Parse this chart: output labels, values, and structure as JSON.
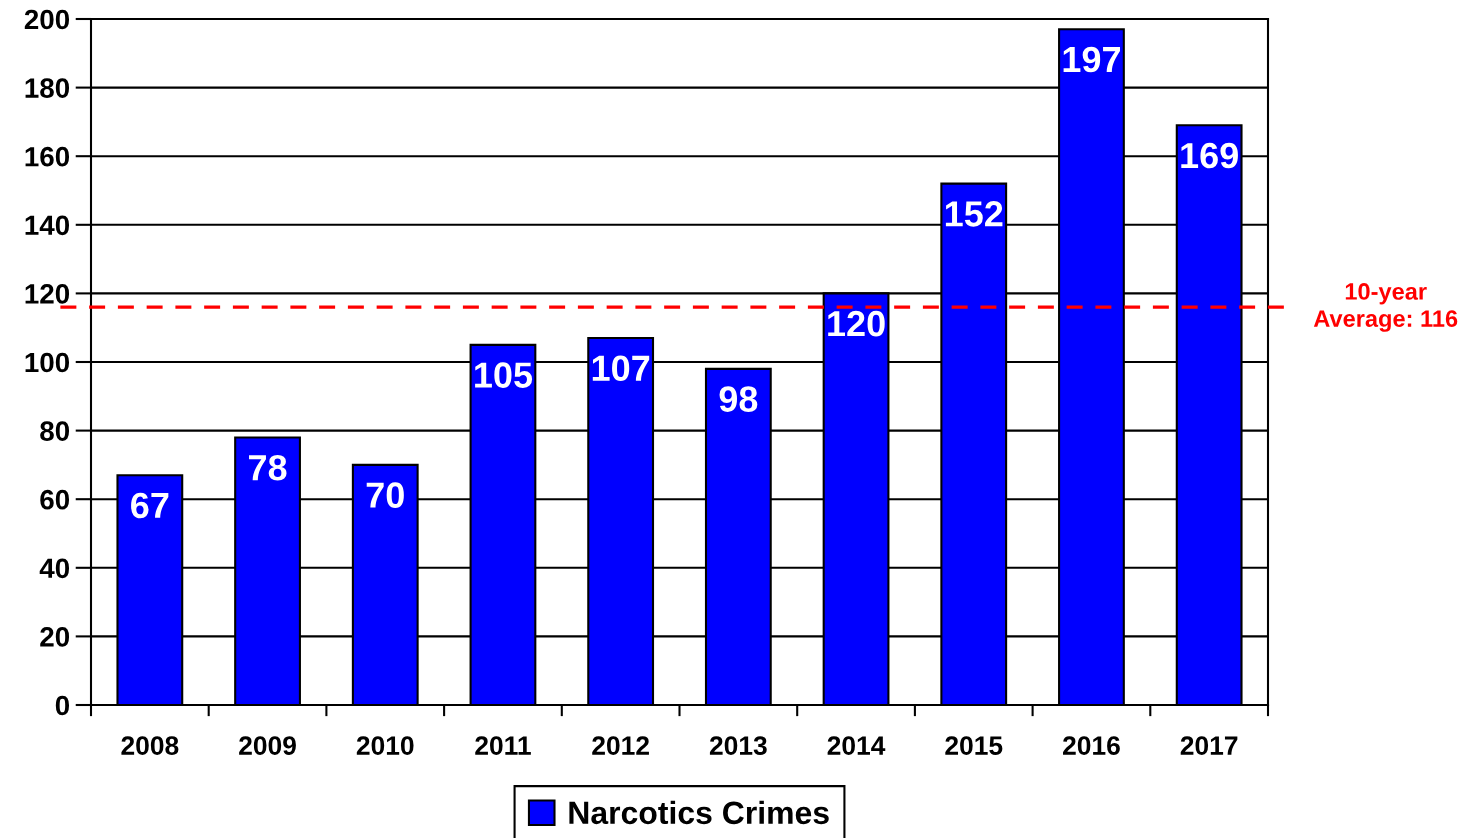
{
  "chart_data": {
    "type": "bar",
    "categories": [
      "2008",
      "2009",
      "2010",
      "2011",
      "2012",
      "2013",
      "2014",
      "2015",
      "2016",
      "2017"
    ],
    "series": [
      {
        "name": "Narcotics Crimes",
        "color": "#0000ff",
        "values": [
          67,
          78,
          70,
          105,
          107,
          98,
          120,
          152,
          197,
          169
        ]
      }
    ],
    "ylim": [
      0,
      200
    ],
    "yticks": [
      0,
      20,
      40,
      60,
      80,
      100,
      120,
      140,
      160,
      180,
      200
    ],
    "grid": "y",
    "legend": "bottom",
    "data_labels": true,
    "ref_lines": [
      {
        "axis": "y",
        "value": 116,
        "label": "10-year\nAverage: 116",
        "color": "#ff0000",
        "line_style": "dashed"
      }
    ]
  }
}
